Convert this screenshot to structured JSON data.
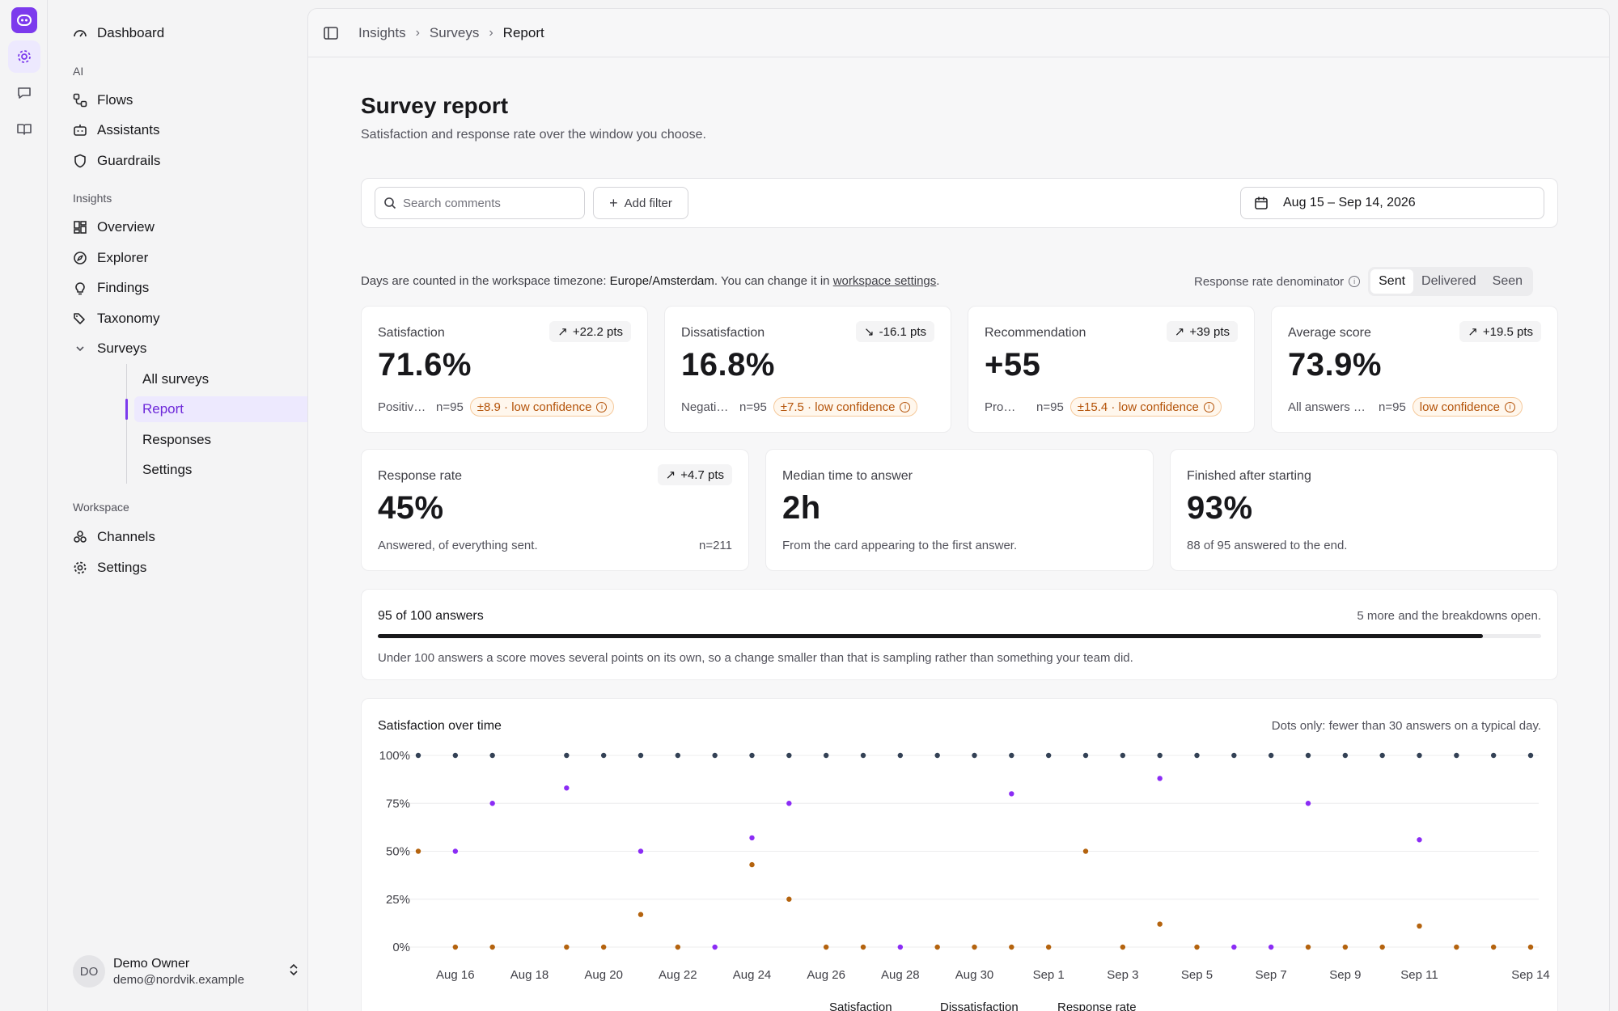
{
  "rail": {
    "icons": [
      "app-logo-icon",
      "gear-icon",
      "chat-icon",
      "book-icon"
    ]
  },
  "sidebar": {
    "dashboard": "Dashboard",
    "sections": {
      "ai": "AI",
      "insights": "Insights",
      "workspace": "Workspace"
    },
    "ai_items": [
      "Flows",
      "Assistants",
      "Guardrails"
    ],
    "insights_items": [
      "Overview",
      "Explorer",
      "Findings",
      "Taxonomy",
      "Surveys"
    ],
    "survey_items": [
      "All surveys",
      "Report",
      "Responses",
      "Settings"
    ],
    "workspace_items": [
      "Channels",
      "Settings"
    ],
    "user": {
      "initials": "DO",
      "name": "Demo Owner",
      "email": "demo@nordvik.example"
    }
  },
  "breadcrumb": [
    "Insights",
    "Surveys",
    "Report"
  ],
  "page": {
    "title": "Survey report",
    "subtitle": "Satisfaction and response rate over the window you choose."
  },
  "filters": {
    "search_placeholder": "Search comments",
    "add_filter": "Add filter",
    "date_range": "Aug 15 – Sep 14, 2026"
  },
  "timezone": {
    "prefix": "Days are counted in the workspace timezone: ",
    "zone": "Europe/Amsterdam",
    "middle": ". You can change it in ",
    "link": "workspace settings",
    "suffix": "."
  },
  "denominator": {
    "label": "Response rate denominator",
    "options": [
      "Sent",
      "Delivered",
      "Seen"
    ],
    "selected": "Sent"
  },
  "kpis": [
    {
      "label": "Satisfaction",
      "delta": "+22.2 pts",
      "value": "71.6%",
      "desc": "Positive answers",
      "n": "n=95",
      "conf": "±8.9 · low confidence"
    },
    {
      "label": "Dissatisfaction",
      "delta": "-16.1 pts",
      "value": "16.8%",
      "desc": "Negative answers",
      "n": "n=95",
      "conf": "±7.5 · low confidence"
    },
    {
      "label": "Recommendation",
      "delta": "+39 pts",
      "value": "+55",
      "desc": "Promoters minus detractors",
      "n": "n=95",
      "conf": "±15.4 · low confidence"
    },
    {
      "label": "Average score",
      "delta": "+19.5 pts",
      "value": "73.9%",
      "desc": "All answers averaged",
      "n": "n=95",
      "conf": "low confidence"
    }
  ],
  "stats": [
    {
      "label": "Response rate",
      "delta": "+4.7 pts",
      "value": "45%",
      "desc": "Answered, of everything sent.",
      "n": "n=211"
    },
    {
      "label": "Median time to answer",
      "value": "2h",
      "desc": "From the card appearing to the first answer."
    },
    {
      "label": "Finished after starting",
      "value": "93%",
      "desc": "88 of 95 answered to the end."
    }
  ],
  "sample": {
    "title": "95 of 100 answers",
    "right": "5 more and the breakdowns open.",
    "progress": 0.95,
    "note": "Under 100 answers a score moves several points on its own, so a change smaller than that is sampling rather than something your team did."
  },
  "chart_data": {
    "type": "scatter",
    "title": "Satisfaction over time",
    "note": "Dots only: fewer than 30 answers on a typical day.",
    "y_ticks": [
      "100%",
      "75%",
      "50%",
      "25%",
      "0%"
    ],
    "ylim": [
      0,
      100
    ],
    "x_ticks": [
      "Aug 16",
      "Aug 18",
      "Aug 20",
      "Aug 22",
      "Aug 24",
      "Aug 26",
      "Aug 28",
      "Aug 30",
      "Sep 1",
      "Sep 3",
      "Sep 5",
      "Sep 7",
      "Sep 9",
      "Sep 11",
      "Sep 14"
    ],
    "x_dates": [
      "Aug 15",
      "Aug 16",
      "Aug 17",
      "Aug 18",
      "Aug 19",
      "Aug 20",
      "Aug 21",
      "Aug 22",
      "Aug 23",
      "Aug 24",
      "Aug 25",
      "Aug 26",
      "Aug 27",
      "Aug 28",
      "Aug 29",
      "Aug 30",
      "Aug 31",
      "Sep 1",
      "Sep 2",
      "Sep 3",
      "Sep 4",
      "Sep 5",
      "Sep 6",
      "Sep 7",
      "Sep 8",
      "Sep 9",
      "Sep 10",
      "Sep 11",
      "Sep 12",
      "Sep 13",
      "Sep 14"
    ],
    "legend": [
      "Satisfaction",
      "Dissatisfaction",
      "Response rate"
    ],
    "colors": {
      "Satisfaction": "#8b2cf5",
      "Dissatisfaction": "#b4630e",
      "Response rate": "#334155"
    },
    "series": [
      {
        "name": "Satisfaction",
        "points": [
          [
            0,
            null
          ],
          [
            1,
            50
          ],
          [
            2,
            75
          ],
          [
            3,
            null
          ],
          [
            4,
            83
          ],
          [
            5,
            null
          ],
          [
            6,
            50
          ],
          [
            7,
            null
          ],
          [
            8,
            0
          ],
          [
            9,
            57
          ],
          [
            10,
            75
          ],
          [
            11,
            null
          ],
          [
            12,
            null
          ],
          [
            13,
            0
          ],
          [
            14,
            null
          ],
          [
            15,
            null
          ],
          [
            16,
            80
          ],
          [
            17,
            null
          ],
          [
            18,
            null
          ],
          [
            19,
            null
          ],
          [
            20,
            88
          ],
          [
            21,
            null
          ],
          [
            22,
            0
          ],
          [
            23,
            0
          ],
          [
            24,
            75
          ],
          [
            25,
            null
          ],
          [
            26,
            null
          ],
          [
            27,
            56
          ],
          [
            28,
            null
          ],
          [
            29,
            null
          ],
          [
            30,
            null
          ]
        ]
      },
      {
        "name": "Dissatisfaction",
        "points": [
          [
            0,
            50
          ],
          [
            1,
            0
          ],
          [
            2,
            0
          ],
          [
            3,
            null
          ],
          [
            4,
            0
          ],
          [
            5,
            0
          ],
          [
            6,
            17
          ],
          [
            7,
            0
          ],
          [
            8,
            null
          ],
          [
            9,
            43
          ],
          [
            10,
            25
          ],
          [
            11,
            0
          ],
          [
            12,
            0
          ],
          [
            13,
            null
          ],
          [
            14,
            0
          ],
          [
            15,
            0
          ],
          [
            16,
            0
          ],
          [
            17,
            0
          ],
          [
            18,
            50
          ],
          [
            19,
            0
          ],
          [
            20,
            12
          ],
          [
            21,
            0
          ],
          [
            22,
            null
          ],
          [
            23,
            null
          ],
          [
            24,
            0
          ],
          [
            25,
            0
          ],
          [
            26,
            0
          ],
          [
            27,
            11
          ],
          [
            28,
            0
          ],
          [
            29,
            0
          ],
          [
            30,
            0
          ]
        ]
      },
      {
        "name": "Response rate",
        "points": [
          [
            0,
            100
          ],
          [
            1,
            100
          ],
          [
            2,
            100
          ],
          [
            3,
            null
          ],
          [
            4,
            100
          ],
          [
            5,
            100
          ],
          [
            6,
            100
          ],
          [
            7,
            100
          ],
          [
            8,
            100
          ],
          [
            9,
            100
          ],
          [
            10,
            100
          ],
          [
            11,
            100
          ],
          [
            12,
            100
          ],
          [
            13,
            100
          ],
          [
            14,
            100
          ],
          [
            15,
            100
          ],
          [
            16,
            100
          ],
          [
            17,
            100
          ],
          [
            18,
            100
          ],
          [
            19,
            100
          ],
          [
            20,
            100
          ],
          [
            21,
            100
          ],
          [
            22,
            100
          ],
          [
            23,
            100
          ],
          [
            24,
            100
          ],
          [
            25,
            100
          ],
          [
            26,
            100
          ],
          [
            27,
            100
          ],
          [
            28,
            100
          ],
          [
            29,
            100
          ],
          [
            30,
            100
          ]
        ]
      }
    ]
  }
}
